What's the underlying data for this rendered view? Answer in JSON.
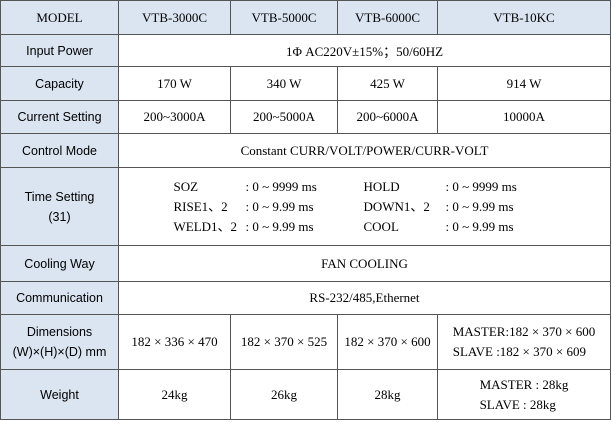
{
  "table": {
    "header": [
      "MODEL",
      "VTB-3000C",
      "VTB-5000C",
      "VTB-6000C",
      "VTB-10KC"
    ],
    "rows": [
      {
        "label": "Input Power",
        "cells": [
          "1Φ AC220V±15%；50/60HZ"
        ]
      },
      {
        "label": "Capacity",
        "cells": [
          "170 W",
          "340 W",
          "425 W",
          "914 W"
        ]
      },
      {
        "label": "Current Setting",
        "cells": [
          "200~3000A",
          "200~5000A",
          "200~6000A",
          "10000A"
        ]
      },
      {
        "label": "Control Mode",
        "cells": [
          "Constant CURR/VOLT/POWER/CURR-VOLT"
        ]
      },
      {
        "label": [
          "Time Setting",
          "(31)"
        ],
        "cells": [
          {
            "items": [
              [
                "SOZ",
                ": 0 ~ 9999 ms"
              ],
              [
                "HOLD",
                ": 0 ~ 9999 ms"
              ],
              [
                "RISE1、2",
                ": 0 ~ 9.99 ms"
              ],
              [
                "DOWN1、2",
                ": 0 ~ 9.99 ms"
              ],
              [
                "WELD1、2",
                ": 0 ~ 9.99 ms"
              ],
              [
                "COOL",
                ": 0 ~ 9.99 ms"
              ]
            ]
          }
        ]
      },
      {
        "label": "Cooling Way",
        "cells": [
          "FAN  COOLING"
        ]
      },
      {
        "label": "Communication",
        "cells": [
          "RS-232/485,Ethernet"
        ]
      },
      {
        "label": [
          "Dimensions",
          "(W)×(H)×(D) mm"
        ],
        "cells": [
          "182 × 336 × 470",
          "182 × 370 × 525",
          "182 × 370 × 600",
          [
            "MASTER:182 × 370 × 600",
            "SLAVE  :182 × 370 × 609"
          ]
        ]
      },
      {
        "label": "Weight",
        "cells": [
          "24kg",
          "26kg",
          "28kg",
          [
            "MASTER : 28kg",
            "SLAVE   : 28kg"
          ]
        ]
      }
    ]
  }
}
